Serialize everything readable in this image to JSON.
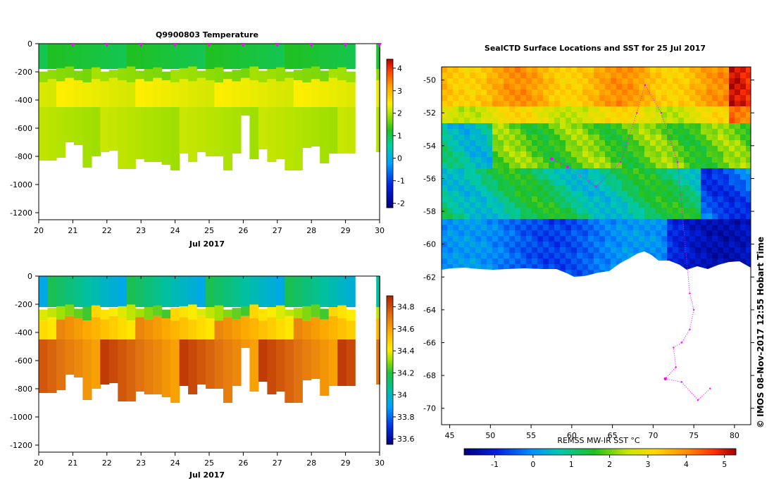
{
  "temperature_panel": {
    "title": "Q9900803  Temperature",
    "xlabel": "Jul 2017",
    "x_ticks": [
      "20",
      "21",
      "22",
      "23",
      "24",
      "25",
      "26",
      "27",
      "28",
      "29",
      "30"
    ],
    "y_ticks": [
      "0",
      "-200",
      "-400",
      "-600",
      "-800",
      "-1000",
      "-1200"
    ],
    "colorbar_ticks": [
      "4",
      "3",
      "2",
      "1",
      "0",
      "-1",
      "-2"
    ]
  },
  "salinity_panel": {
    "title": "",
    "xlabel": "Jul 2017",
    "x_ticks": [
      "20",
      "21",
      "22",
      "23",
      "24",
      "25",
      "26",
      "27",
      "28",
      "29",
      "30"
    ],
    "y_ticks": [
      "0",
      "-200",
      "-400",
      "-600",
      "-800",
      "-1000",
      "-1200"
    ],
    "colorbar_ticks": [
      "34.8",
      "34.6",
      "34.4",
      "34.2",
      "34",
      "33.8",
      "33.6"
    ]
  },
  "map_panel": {
    "title": "SealCTD Surface Locations and SST for 25 Jul 2017",
    "x_ticks": [
      "45",
      "50",
      "55",
      "60",
      "65",
      "70",
      "75",
      "80"
    ],
    "y_ticks": [
      "-50",
      "-52",
      "-54",
      "-56",
      "-58",
      "-60",
      "-62",
      "-64",
      "-66",
      "-68",
      "-70"
    ],
    "colorbar_label": "REMSS MW-IR SST °C",
    "colorbar_ticks": [
      "-1",
      "0",
      "1",
      "2",
      "3",
      "4",
      "5"
    ]
  },
  "side_note": "©  IMOS 08-Nov-2017 12:55 Hobart Time",
  "chart_data": [
    {
      "type": "heatmap",
      "title": "Q9900803  Temperature",
      "xlabel": "Jul 2017",
      "ylabel": "",
      "xlim": [
        20,
        30
      ],
      "ylim": [
        -1250,
        0
      ],
      "units": "°C",
      "colorbar_range": [
        -2.2,
        4.4
      ],
      "layers": [
        {
          "depth_range": [
            0,
            -180
          ],
          "value": 1.1
        },
        {
          "depth_range": [
            -180,
            -260
          ],
          "value": 1.8
        },
        {
          "depth_range": [
            -260,
            -450
          ],
          "value": 2.3
        },
        {
          "depth_range": [
            -450,
            -900
          ],
          "value": 2.0
        }
      ],
      "profile_max_depth": [
        -830,
        -830,
        -810,
        -700,
        -720,
        -880,
        -800,
        -770,
        -760,
        -890,
        -890,
        -820,
        -840,
        -840,
        -860,
        -940,
        -780,
        -840,
        -770,
        -800,
        -800,
        -940,
        -780,
        -510,
        -820,
        -750,
        -840,
        -820,
        -940,
        -940,
        -740,
        -730,
        -850,
        -780,
        -780,
        -780
      ],
      "profile_markers_x": [
        21.0,
        22.0,
        23.0,
        24.0,
        25.0,
        26.0,
        27.0,
        28.0,
        29.0,
        30.0
      ]
    },
    {
      "type": "heatmap",
      "title": "",
      "xlabel": "Jul 2017",
      "ylabel": "",
      "xlim": [
        20,
        30
      ],
      "ylim": [
        -1250,
        0
      ],
      "units": "psu",
      "colorbar_range": [
        33.55,
        34.9
      ],
      "layers": [
        {
          "depth_range": [
            0,
            -220
          ],
          "value": 34.05
        },
        {
          "depth_range": [
            -220,
            -300
          ],
          "value": 34.35
        },
        {
          "depth_range": [
            -300,
            -450
          ],
          "value": 34.55
        },
        {
          "depth_range": [
            -450,
            -900
          ],
          "value": 34.72
        }
      ],
      "profile_max_depth": [
        -830,
        -830,
        -810,
        -700,
        -720,
        -880,
        -800,
        -770,
        -760,
        -890,
        -890,
        -820,
        -840,
        -840,
        -860,
        -940,
        -780,
        -840,
        -770,
        -800,
        -800,
        -940,
        -780,
        -510,
        -820,
        -750,
        -840,
        -820,
        -940,
        -940,
        -740,
        -730,
        -850,
        -780,
        -780,
        -780
      ]
    },
    {
      "type": "heatmap",
      "title": "SealCTD Surface Locations and SST for 25 Jul 2017",
      "xlabel": "",
      "ylabel": "",
      "xlim": [
        44,
        82
      ],
      "ylim": [
        -71,
        -49.2
      ],
      "colorbar_label": "REMSS MW-IR SST °C",
      "colorbar_range": [
        -1.8,
        5.3
      ],
      "sst_bands": [
        {
          "lat_range": [
            -49.2,
            -52.5
          ],
          "value": 3.5
        },
        {
          "lat_range": [
            -52.5,
            -55.5
          ],
          "value": 2.0
        },
        {
          "lat_range": [
            -55.5,
            -58.5
          ],
          "value": 1.0
        },
        {
          "lat_range": [
            -58.5,
            -61.5
          ],
          "value": -0.5
        }
      ],
      "seal_track": [
        {
          "lon": 57.5,
          "lat": -54.8
        },
        {
          "lon": 59.5,
          "lat": -55.3
        },
        {
          "lon": 63.0,
          "lat": -56.5
        },
        {
          "lon": 66.0,
          "lat": -55.0
        },
        {
          "lon": 68.0,
          "lat": -52.0
        },
        {
          "lon": 69.0,
          "lat": -50.3
        },
        {
          "lon": 71.0,
          "lat": -52.0
        },
        {
          "lon": 73.0,
          "lat": -55.0
        },
        {
          "lon": 74.5,
          "lat": -63.0
        },
        {
          "lon": 75.0,
          "lat": -64.0
        },
        {
          "lon": 74.5,
          "lat": -65.2
        },
        {
          "lon": 73.5,
          "lat": -66.0
        },
        {
          "lon": 72.5,
          "lat": -66.3
        },
        {
          "lon": 72.8,
          "lat": -67.5
        },
        {
          "lon": 71.5,
          "lat": -68.2
        },
        {
          "lon": 73.5,
          "lat": -68.4
        },
        {
          "lon": 75.5,
          "lat": -69.5
        },
        {
          "lon": 77.0,
          "lat": -68.8
        }
      ]
    }
  ]
}
